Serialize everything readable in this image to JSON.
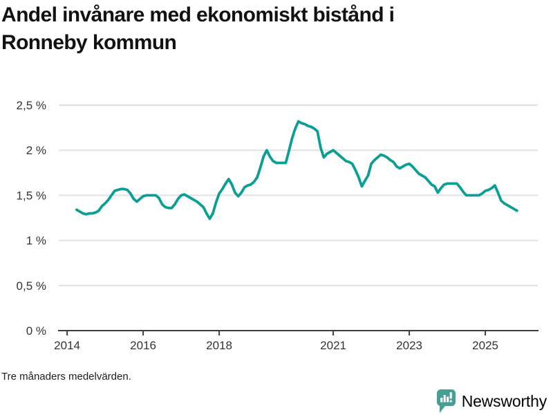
{
  "title": "Andel invånare med ekonomiskt bistånd i Ronneby kommun",
  "footnote": "Tre månaders medelvärden.",
  "branding": {
    "name": "Newsworthy",
    "icon": "newsworthy-chart-bubble-icon"
  },
  "colors": {
    "line": "#0a9f95",
    "grid": "#e1e1e1",
    "axis": "#3d3d3d",
    "tick_text": "#333333",
    "title_text": "#121212",
    "brand": "#4a9d93"
  },
  "chart_data": {
    "type": "line",
    "title": "Andel invånare med ekonomiskt bistånd i Ronneby kommun",
    "subtitle": "Tre månaders medelvärden.",
    "unit": "%",
    "grid": true,
    "legend": "none",
    "ylim": [
      0,
      2.5
    ],
    "xlim_decimal_years": [
      2013.78,
      2026.4
    ],
    "y_ticks": [
      {
        "value": 0,
        "label": "0 %"
      },
      {
        "value": 0.5,
        "label": "0,5 %"
      },
      {
        "value": 1,
        "label": "1 %"
      },
      {
        "value": 1.5,
        "label": "1,5 %"
      },
      {
        "value": 2,
        "label": "2 %"
      },
      {
        "value": 2.5,
        "label": "2,5 %"
      }
    ],
    "x_ticks": [
      {
        "value": 2014,
        "label": "2014"
      },
      {
        "value": 2016,
        "label": "2016"
      },
      {
        "value": 2018,
        "label": "2018"
      },
      {
        "value": 2021,
        "label": "2021"
      },
      {
        "value": 2023,
        "label": "2023"
      },
      {
        "value": 2025,
        "label": "2025"
      }
    ],
    "series": [
      {
        "start": "2014-04",
        "frequency": "monthly",
        "values": [
          1.34,
          1.32,
          1.3,
          1.29,
          1.3,
          1.3,
          1.31,
          1.33,
          1.38,
          1.41,
          1.45,
          1.5,
          1.55,
          1.56,
          1.57,
          1.57,
          1.56,
          1.52,
          1.46,
          1.43,
          1.46,
          1.49,
          1.5,
          1.5,
          1.5,
          1.5,
          1.47,
          1.4,
          1.37,
          1.36,
          1.36,
          1.4,
          1.46,
          1.5,
          1.51,
          1.49,
          1.47,
          1.45,
          1.43,
          1.4,
          1.37,
          1.3,
          1.24,
          1.3,
          1.42,
          1.52,
          1.57,
          1.63,
          1.68,
          1.62,
          1.53,
          1.49,
          1.53,
          1.59,
          1.61,
          1.62,
          1.65,
          1.7,
          1.81,
          1.93,
          2.0,
          1.93,
          1.88,
          1.86,
          1.86,
          1.86,
          1.86,
          1.99,
          2.13,
          2.24,
          2.32,
          2.3,
          2.29,
          2.27,
          2.26,
          2.24,
          2.21,
          2.03,
          1.92,
          1.96,
          1.98,
          2.0,
          1.97,
          1.94,
          1.91,
          1.88,
          1.87,
          1.85,
          1.78,
          1.7,
          1.6,
          1.66,
          1.72,
          1.85,
          1.89,
          1.92,
          1.95,
          1.94,
          1.92,
          1.89,
          1.87,
          1.82,
          1.8,
          1.82,
          1.84,
          1.85,
          1.82,
          1.78,
          1.74,
          1.72,
          1.7,
          1.66,
          1.62,
          1.6,
          1.53,
          1.58,
          1.62,
          1.63,
          1.63,
          1.63,
          1.63,
          1.59,
          1.54,
          1.5,
          1.5,
          1.5,
          1.5,
          1.5,
          1.52,
          1.55,
          1.56,
          1.58,
          1.61,
          1.53,
          1.44,
          1.41,
          1.39,
          1.37,
          1.35,
          1.33
        ]
      }
    ]
  }
}
